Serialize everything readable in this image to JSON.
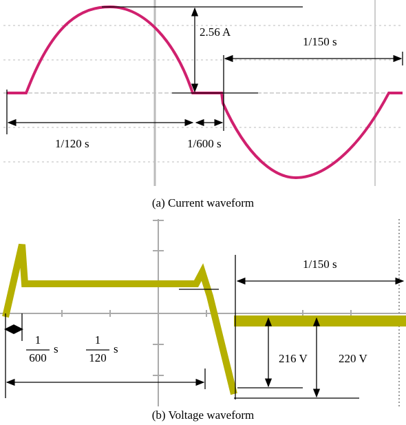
{
  "panel_a": {
    "height_label": "2.56 A",
    "period_label": "1/150  s",
    "half_label": "1/120  s",
    "gap_label": "1/600  s",
    "caption": "(a)  Current waveform"
  },
  "panel_b": {
    "period_label": "1/150  s",
    "gap_num": "1",
    "gap_den": "600",
    "gap_unit": "s",
    "half_num": "1",
    "half_den": "120",
    "half_unit": "s",
    "low_label": "216 V",
    "high_label": "220 V",
    "caption": "(b)  Voltage  waveform"
  }
}
